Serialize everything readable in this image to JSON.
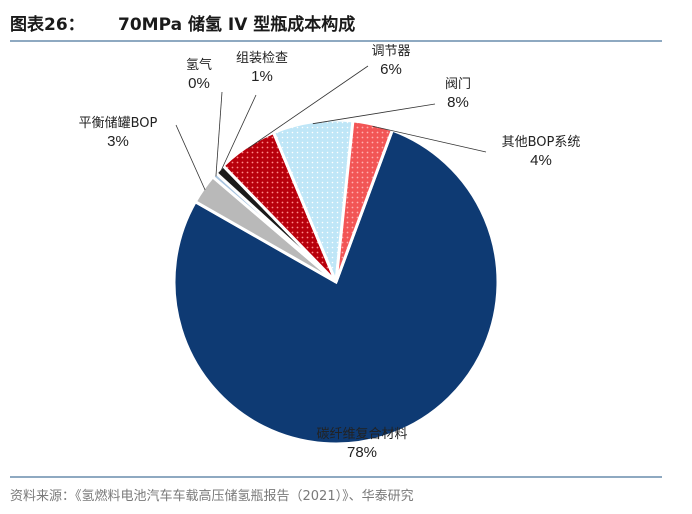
{
  "figure": {
    "label": "图表26：",
    "title": "70MPa 储氢 IV 型瓶成本构成"
  },
  "source": "资料来源：《氢燃料电池汽车车载高压储氢瓶报告（2021）》、华泰研究",
  "chart_data": {
    "type": "pie",
    "title": "70MPa 储氢 IV 型瓶成本构成",
    "slices": [
      {
        "name": "碳纤维复合材料",
        "value": 78,
        "value_label": "78%",
        "color": "#0e3a73",
        "pattern": "solid"
      },
      {
        "name": "平衡储罐BOP",
        "value": 3,
        "value_label": "3%",
        "color": "#b9b9b9",
        "pattern": "solid"
      },
      {
        "name": "氢气",
        "value": 0.5,
        "value_label": "0%",
        "color": "#a8c4df",
        "pattern": "solid"
      },
      {
        "name": "组装检查",
        "value": 1,
        "value_label": "1%",
        "color": "#1a1a1a",
        "pattern": "solid"
      },
      {
        "name": "调节器",
        "value": 6,
        "value_label": "6%",
        "color": "#c0000f",
        "pattern": "dots"
      },
      {
        "name": "阀门",
        "value": 8,
        "value_label": "8%",
        "color": "#bfe6f7",
        "pattern": "dots"
      },
      {
        "name": "其他BOP系统",
        "value": 4,
        "value_label": "4%",
        "color": "#f25d5d",
        "pattern": "dots"
      }
    ]
  }
}
